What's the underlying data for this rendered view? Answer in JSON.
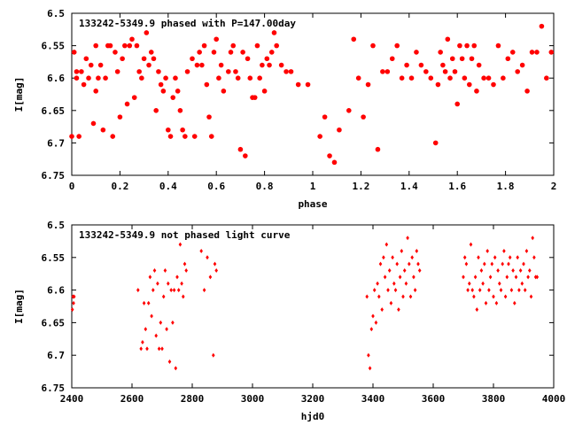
{
  "colors": {
    "marker": "#ff0000",
    "axis": "#000000",
    "background": "#ffffff"
  },
  "chart_data": [
    {
      "type": "scatter",
      "title": "133242-5349.9 phased with P=147.00day",
      "xlabel": "phase",
      "ylabel": "I[mag]",
      "xlim": [
        0,
        2
      ],
      "ylim": [
        6.5,
        6.75
      ],
      "y_inverted": true,
      "xticks": [
        "0",
        "0.2",
        "0.4",
        "0.6",
        "0.8",
        "1",
        "1.2",
        "1.4",
        "1.6",
        "1.8",
        "2"
      ],
      "yticks": [
        "6.5",
        "6.55",
        "6.6",
        "6.65",
        "6.7",
        "6.75"
      ],
      "grid": false,
      "marker": "filled circle",
      "series": [
        {
          "x": [
            0.0,
            0.01,
            0.02,
            0.02,
            0.03,
            0.04,
            0.05,
            0.06,
            0.07,
            0.08,
            0.09,
            0.1,
            0.1,
            0.11,
            0.12,
            0.13,
            0.14,
            0.15,
            0.16,
            0.17,
            0.18,
            0.19,
            0.2,
            0.21,
            0.22,
            0.23,
            0.24,
            0.25,
            0.26,
            0.27,
            0.28,
            0.29,
            0.3,
            0.31,
            0.32,
            0.33,
            0.34,
            0.35,
            0.36,
            0.37,
            0.38,
            0.39,
            0.4,
            0.41,
            0.42,
            0.43,
            0.44,
            0.45,
            0.46,
            0.47,
            0.48,
            0.5,
            0.51,
            0.52,
            0.53,
            0.54,
            0.55,
            0.56,
            0.57,
            0.58,
            0.59,
            0.6,
            0.61,
            0.62,
            0.63,
            0.65,
            0.66,
            0.67,
            0.68,
            0.69,
            0.7,
            0.71,
            0.72,
            0.73,
            0.74,
            0.75,
            0.76,
            0.77,
            0.78,
            0.79,
            0.8,
            0.81,
            0.82,
            0.83,
            0.84,
            0.85,
            0.87,
            0.89,
            0.91,
            0.94,
            0.98,
            1.03,
            1.05,
            1.07,
            1.09,
            1.11,
            1.15,
            1.17,
            1.19,
            1.21,
            1.23,
            1.25,
            1.27,
            1.29,
            1.31,
            1.33,
            1.35,
            1.37,
            1.39,
            1.41,
            1.43,
            1.45,
            1.47,
            1.49,
            1.51,
            1.52,
            1.53,
            1.54,
            1.55,
            1.56,
            1.57,
            1.58,
            1.59,
            1.6,
            1.61,
            1.62,
            1.63,
            1.64,
            1.65,
            1.66,
            1.67,
            1.68,
            1.69,
            1.71,
            1.73,
            1.75,
            1.77,
            1.79,
            1.81,
            1.83,
            1.85,
            1.87,
            1.89,
            1.91,
            1.93,
            1.95,
            1.97,
            1.99
          ],
          "y": [
            6.69,
            6.56,
            6.6,
            6.59,
            6.69,
            6.59,
            6.61,
            6.57,
            6.6,
            6.58,
            6.67,
            6.62,
            6.55,
            6.6,
            6.58,
            6.68,
            6.6,
            6.55,
            6.55,
            6.69,
            6.56,
            6.59,
            6.66,
            6.57,
            6.55,
            6.64,
            6.55,
            6.54,
            6.63,
            6.55,
            6.59,
            6.6,
            6.57,
            6.53,
            6.58,
            6.56,
            6.57,
            6.65,
            6.59,
            6.61,
            6.62,
            6.6,
            6.68,
            6.69,
            6.63,
            6.6,
            6.62,
            6.65,
            6.68,
            6.69,
            6.59,
            6.57,
            6.69,
            6.58,
            6.56,
            6.58,
            6.55,
            6.61,
            6.66,
            6.69,
            6.56,
            6.54,
            6.6,
            6.58,
            6.62,
            6.59,
            6.56,
            6.55,
            6.59,
            6.6,
            6.71,
            6.56,
            6.72,
            6.57,
            6.6,
            6.63,
            6.63,
            6.55,
            6.6,
            6.58,
            6.62,
            6.57,
            6.58,
            6.56,
            6.53,
            6.55,
            6.58,
            6.59,
            6.59,
            6.61,
            6.61,
            6.69,
            6.66,
            6.72,
            6.73,
            6.68,
            6.65,
            6.54,
            6.6,
            6.66,
            6.61,
            6.55,
            6.71,
            6.59,
            6.59,
            6.57,
            6.55,
            6.6,
            6.58,
            6.6,
            6.56,
            6.58,
            6.59,
            6.6,
            6.7,
            6.61,
            6.56,
            6.58,
            6.59,
            6.54,
            6.6,
            6.57,
            6.59,
            6.64,
            6.55,
            6.57,
            6.6,
            6.55,
            6.61,
            6.57,
            6.55,
            6.62,
            6.58,
            6.6,
            6.6,
            6.61,
            6.55,
            6.6,
            6.57,
            6.56,
            6.59,
            6.58,
            6.62,
            6.56,
            6.56,
            6.52,
            6.6,
            6.56
          ],
          "name": ""
        }
      ]
    },
    {
      "type": "scatter",
      "title": "133242-5349.9 not phased light curve",
      "xlabel": "hjd0",
      "ylabel": "I[mag]",
      "xlim": [
        2400,
        4000
      ],
      "ylim": [
        6.5,
        6.75
      ],
      "y_inverted": true,
      "xticks": [
        "2400",
        "2600",
        "2800",
        "3000",
        "3200",
        "3400",
        "3600",
        "3800",
        "4000"
      ],
      "yticks": [
        "6.5",
        "6.55",
        "6.6",
        "6.65",
        "6.7",
        "6.75"
      ],
      "grid": false,
      "marker": "small diamond",
      "series": [
        {
          "x": [
            2402,
            2404,
            2406,
            2408,
            2620,
            2630,
            2635,
            2640,
            2645,
            2650,
            2655,
            2660,
            2665,
            2670,
            2675,
            2680,
            2685,
            2690,
            2695,
            2700,
            2705,
            2710,
            2715,
            2720,
            2725,
            2730,
            2735,
            2740,
            2745,
            2750,
            2755,
            2760,
            2765,
            2770,
            2775,
            2780,
            2830,
            2840,
            2850,
            2860,
            2870,
            2875,
            2880,
            3380,
            3385,
            3390,
            3395,
            3400,
            3405,
            3410,
            3415,
            3420,
            3425,
            3430,
            3435,
            3440,
            3445,
            3450,
            3455,
            3460,
            3465,
            3470,
            3475,
            3480,
            3485,
            3490,
            3495,
            3500,
            3505,
            3510,
            3515,
            3520,
            3525,
            3530,
            3535,
            3540,
            3545,
            3550,
            3555,
            3700,
            3705,
            3710,
            3715,
            3720,
            3725,
            3730,
            3735,
            3740,
            3745,
            3750,
            3755,
            3760,
            3765,
            3770,
            3775,
            3780,
            3785,
            3790,
            3795,
            3800,
            3805,
            3810,
            3815,
            3820,
            3825,
            3830,
            3835,
            3840,
            3845,
            3850,
            3855,
            3860,
            3865,
            3870,
            3875,
            3880,
            3885,
            3890,
            3895,
            3900,
            3905,
            3910,
            3915,
            3920,
            3925,
            3930,
            3935,
            3940,
            3945
          ],
          "y": [
            6.63,
            6.61,
            6.62,
            6.61,
            6.6,
            6.69,
            6.68,
            6.62,
            6.66,
            6.69,
            6.62,
            6.58,
            6.64,
            6.6,
            6.57,
            6.67,
            6.59,
            6.69,
            6.65,
            6.69,
            6.61,
            6.57,
            6.66,
            6.59,
            6.71,
            6.6,
            6.65,
            6.6,
            6.72,
            6.58,
            6.6,
            6.53,
            6.59,
            6.61,
            6.56,
            6.57,
            6.54,
            6.6,
            6.55,
            6.58,
            6.7,
            6.56,
            6.57,
            6.61,
            6.7,
            6.72,
            6.66,
            6.64,
            6.6,
            6.65,
            6.59,
            6.61,
            6.56,
            6.63,
            6.55,
            6.58,
            6.53,
            6.6,
            6.57,
            6.62,
            6.55,
            6.59,
            6.6,
            6.56,
            6.63,
            6.58,
            6.54,
            6.61,
            6.57,
            6.59,
            6.52,
            6.56,
            6.61,
            6.55,
            6.58,
            6.6,
            6.54,
            6.56,
            6.57,
            6.58,
            6.55,
            6.56,
            6.6,
            6.59,
            6.53,
            6.6,
            6.61,
            6.58,
            6.63,
            6.55,
            6.6,
            6.57,
            6.59,
            6.56,
            6.62,
            6.54,
            6.6,
            6.58,
            6.56,
            6.61,
            6.55,
            6.62,
            6.57,
            6.59,
            6.6,
            6.56,
            6.54,
            6.61,
            6.58,
            6.56,
            6.55,
            6.6,
            6.57,
            6.62,
            6.58,
            6.55,
            6.6,
            6.57,
            6.59,
            6.56,
            6.6,
            6.54,
            6.58,
            6.57,
            6.61,
            6.52,
            6.55,
            6.58,
            6.58
          ],
          "name": ""
        }
      ]
    }
  ]
}
